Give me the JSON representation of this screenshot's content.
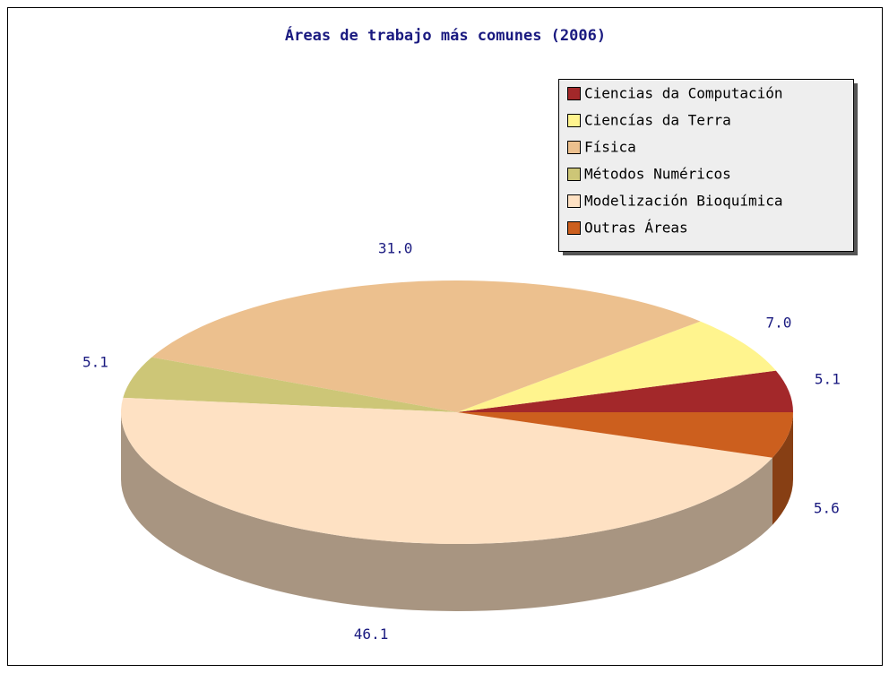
{
  "chart_data": {
    "type": "pie3d",
    "title": "Áreas de trabajo más comunes (2006)",
    "categories": [
      "Ciencias da Computación",
      "Ciencías da Terra",
      "Física",
      "Métodos Numéricos",
      "Modelización Bioquímica",
      "Outras Áreas"
    ],
    "values": [
      5.1,
      7.0,
      31.0,
      5.1,
      46.1,
      5.6
    ],
    "value_labels": [
      "5.1",
      "7.0",
      "31.0",
      "5.1",
      "46.1",
      "5.6"
    ],
    "colors": [
      "#a3282a",
      "#fff48e",
      "#ecc08e",
      "#cdc677",
      "#fee1c3",
      "#cc5f1e"
    ],
    "legend": "upper right"
  }
}
